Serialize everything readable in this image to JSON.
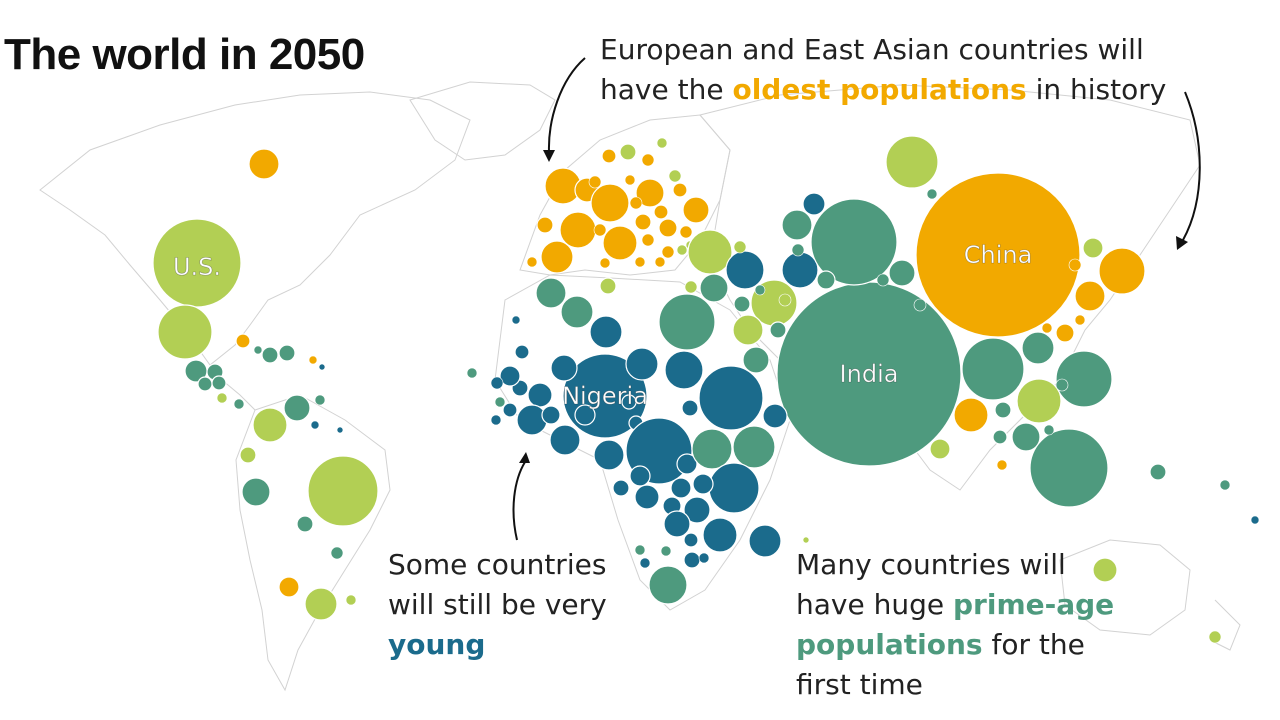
{
  "title": "The world in 2050",
  "annotations": {
    "old": {
      "line1": "European and East Asian countries will",
      "pre": "have the ",
      "highlight": "oldest populations",
      "post": " in history"
    },
    "young": {
      "line1": "Some countries",
      "line2": "will still be very",
      "highlight": "young"
    },
    "prime": {
      "line1": "Many countries will",
      "pre": "have huge ",
      "highlight1": "prime-age",
      "highlight2": "populations",
      "post": " for the",
      "line4": "first time"
    }
  },
  "colors": {
    "oldest": "#f2a900",
    "young": "#1b6b8c",
    "prime_age": "#4e9a7e",
    "mixed": "#b2cf54",
    "land_outline": "#cfcfcf",
    "text": "#222222"
  },
  "labeled_countries": [
    {
      "name": "U.S.",
      "category": "mixed"
    },
    {
      "name": "Nigeria",
      "category": "young"
    },
    {
      "name": "India",
      "category": "prime_age"
    },
    {
      "name": "China",
      "category": "oldest"
    }
  ],
  "legend_categories": [
    "oldest",
    "young",
    "prime_age",
    "mixed"
  ]
}
